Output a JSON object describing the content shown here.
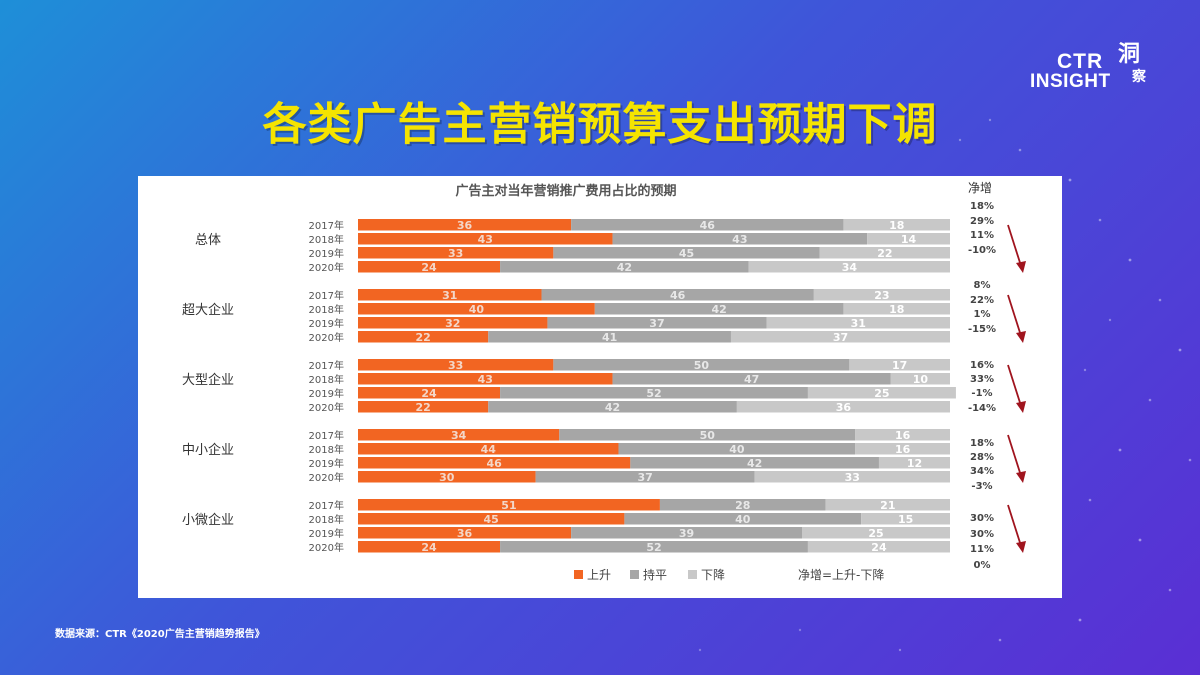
{
  "page": {
    "title": "各类广告主营销预算支出预期下调",
    "source": "数据来源：CTR《2020广告主营销趋势报告》"
  },
  "logo": {
    "line1": "CTR",
    "line2": "INSIGHT",
    "mark_top": "洞",
    "mark_bottom": "察"
  },
  "colors": {
    "rise": "#f26522",
    "flat": "#a6a6a6",
    "fall": "#c8c8c8",
    "arrow": "#a0141e",
    "title": "#f5e400"
  },
  "chart_data": {
    "type": "bar",
    "orientation": "horizontal",
    "stacked": true,
    "percent": true,
    "title": "广告主对当年营销推广费用占比的预期",
    "net_header": "净增",
    "legend": [
      "上升",
      "持平",
      "下降"
    ],
    "legend_note": "净增=上升-下降",
    "groups": [
      {
        "name": "总体",
        "rows": [
          {
            "year": "2017年",
            "rise": 36,
            "flat": 46,
            "fall": 18
          },
          {
            "year": "2018年",
            "rise": 43,
            "flat": 43,
            "fall": 14
          },
          {
            "year": "2019年",
            "rise": 33,
            "flat": 45,
            "fall": 22
          },
          {
            "year": "2020年",
            "rise": 24,
            "flat": 42,
            "fall": 34
          }
        ]
      },
      {
        "name": "超大企业",
        "rows": [
          {
            "year": "2017年",
            "rise": 31,
            "flat": 46,
            "fall": 23
          },
          {
            "year": "2018年",
            "rise": 40,
            "flat": 42,
            "fall": 18
          },
          {
            "year": "2019年",
            "rise": 32,
            "flat": 37,
            "fall": 31
          },
          {
            "year": "2020年",
            "rise": 22,
            "flat": 41,
            "fall": 37
          }
        ]
      },
      {
        "name": "大型企业",
        "rows": [
          {
            "year": "2017年",
            "rise": 33,
            "flat": 50,
            "fall": 17
          },
          {
            "year": "2018年",
            "rise": 43,
            "flat": 47,
            "fall": 10
          },
          {
            "year": "2019年",
            "rise": 24,
            "flat": 52,
            "fall": 25
          },
          {
            "year": "2020年",
            "rise": 22,
            "flat": 42,
            "fall": 36
          }
        ]
      },
      {
        "name": "中小企业",
        "rows": [
          {
            "year": "2017年",
            "rise": 34,
            "flat": 50,
            "fall": 16
          },
          {
            "year": "2018年",
            "rise": 44,
            "flat": 40,
            "fall": 16
          },
          {
            "year": "2019年",
            "rise": 46,
            "flat": 42,
            "fall": 12
          },
          {
            "year": "2020年",
            "rise": 30,
            "flat": 37,
            "fall": 33
          }
        ]
      },
      {
        "name": "小微企业",
        "rows": [
          {
            "year": "2017年",
            "rise": 51,
            "flat": 28,
            "fall": 21
          },
          {
            "year": "2018年",
            "rise": 45,
            "flat": 40,
            "fall": 15
          },
          {
            "year": "2019年",
            "rise": 36,
            "flat": 39,
            "fall": 25
          },
          {
            "year": "2020年",
            "rise": 24,
            "flat": 52,
            "fall": 24
          }
        ]
      }
    ],
    "net_values": [
      "18%",
      "29%",
      "11%",
      "-10%",
      "8%",
      "22%",
      "1%",
      "-15%",
      "16%",
      "33%",
      "-1%",
      "-14%",
      "18%",
      "28%",
      "34%",
      "-3%",
      "30%",
      "30%",
      "11%",
      "0%"
    ]
  }
}
